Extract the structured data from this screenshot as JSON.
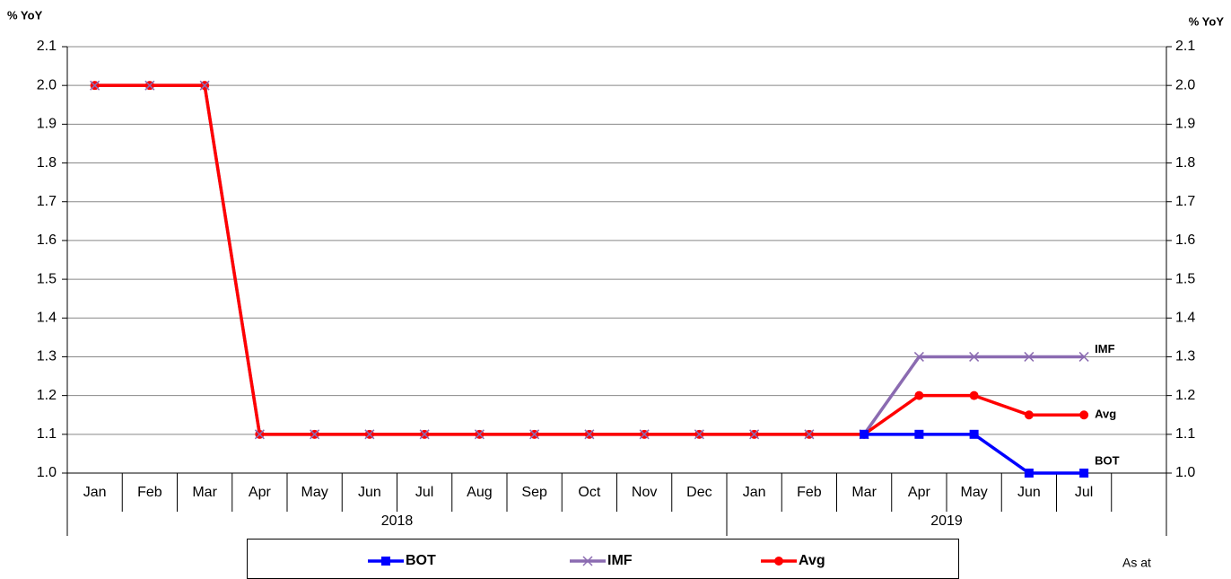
{
  "chart_data": {
    "type": "line",
    "ylabel": "% YoY",
    "y2label": "% YoY",
    "categories": [
      "Jan",
      "Feb",
      "Mar",
      "Apr",
      "May",
      "Jun",
      "Jul",
      "Aug",
      "Sep",
      "Oct",
      "Nov",
      "Dec",
      "Jan",
      "Feb",
      "Mar",
      "Apr",
      "May",
      "Jun",
      "Jul",
      null
    ],
    "groups": [
      {
        "label": "2018",
        "span": 12
      },
      {
        "label": "2019",
        "span": 8
      }
    ],
    "series": [
      {
        "name": "BOT",
        "color": "#0000ff",
        "marker": "square",
        "values": [
          null,
          null,
          null,
          null,
          null,
          null,
          null,
          null,
          null,
          null,
          null,
          null,
          null,
          null,
          1.1,
          1.1,
          1.1,
          1.0,
          1.0,
          null
        ]
      },
      {
        "name": "IMF",
        "color": "#8b6bb1",
        "marker": "x",
        "values": [
          2.0,
          2.0,
          2.0,
          1.1,
          1.1,
          1.1,
          1.1,
          1.1,
          1.1,
          1.1,
          1.1,
          1.1,
          1.1,
          1.1,
          1.1,
          1.3,
          1.3,
          1.3,
          1.3,
          null
        ]
      },
      {
        "name": "Avg",
        "color": "#ff0000",
        "marker": "circle",
        "values": [
          2.0,
          2.0,
          2.0,
          1.1,
          1.1,
          1.1,
          1.1,
          1.1,
          1.1,
          1.1,
          1.1,
          1.1,
          1.1,
          1.1,
          1.1,
          1.2,
          1.2,
          1.15,
          1.15,
          null
        ]
      }
    ],
    "ylim": [
      1.0,
      2.1
    ],
    "yticks": [
      {
        "value": 1.0,
        "label": "1.0"
      },
      1.1,
      1.2,
      1.3,
      1.4,
      1.5,
      1.6,
      1.7,
      1.8,
      1.9,
      {
        "value": 2.0,
        "label": "2.0"
      },
      2.1
    ],
    "y2lim": [
      1.0,
      2.1
    ],
    "y2ticks": [
      {
        "value": 1.0,
        "label": "1.0"
      },
      1.1,
      1.2,
      1.3,
      1.4,
      1.5,
      1.6,
      1.7,
      1.8,
      1.9,
      {
        "value": 2.0,
        "label": "2.0"
      },
      2.1
    ],
    "grid": true,
    "legend": "bottom",
    "annotation": "As at"
  }
}
